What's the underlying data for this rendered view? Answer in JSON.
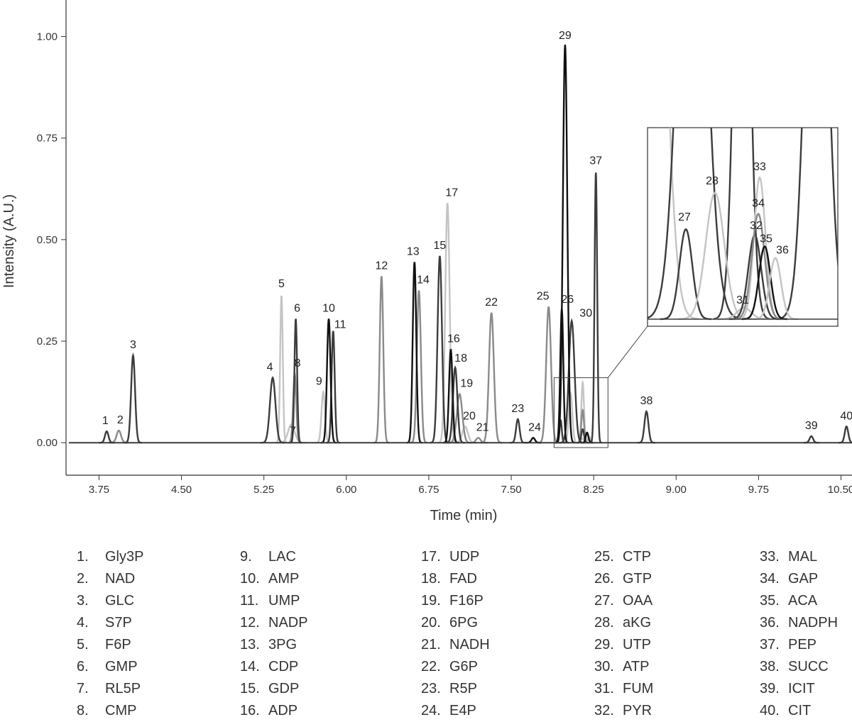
{
  "chart_data": {
    "type": "line",
    "xlabel": "Time (min)",
    "ylabel": "Intensity (A.U.)",
    "xlim": [
      3.45,
      10.6
    ],
    "ylim": [
      -0.08,
      1.09
    ],
    "xticks": [
      3.75,
      4.5,
      5.25,
      6.0,
      6.75,
      7.5,
      8.25,
      9.0,
      9.75,
      10.5
    ],
    "xtick_labels": [
      "3.75",
      "4.50",
      "5.25",
      "6.00",
      "6.75",
      "7.50",
      "8.25",
      "9.00",
      "9.75",
      "10.50"
    ],
    "yticks": [
      0.0,
      0.25,
      0.5,
      0.75,
      1.0
    ],
    "ytick_labels": [
      "0.00",
      "0.25",
      "0.50",
      "0.75",
      "1.00"
    ],
    "grid": false,
    "colors": {
      "dark": "#3c3c3c",
      "black": "#111111",
      "mid": "#8a8a8a",
      "light": "#c4c4c4"
    },
    "peaks": [
      {
        "id": "1",
        "rt": 3.82,
        "height": 0.028,
        "width": 0.016,
        "shade": "dark"
      },
      {
        "id": "2",
        "rt": 3.93,
        "height": 0.03,
        "width": 0.02,
        "shade": "mid"
      },
      {
        "id": "3",
        "rt": 4.06,
        "height": 0.215,
        "width": 0.018,
        "shade": "dark"
      },
      {
        "id": "4",
        "rt": 5.33,
        "height": 0.16,
        "width": 0.025,
        "shade": "dark"
      },
      {
        "id": "5",
        "rt": 5.41,
        "height": 0.362,
        "width": 0.012,
        "shade": "light"
      },
      {
        "id": "6",
        "rt": 5.54,
        "height": 0.305,
        "width": 0.012,
        "shade": "dark"
      },
      {
        "id": "7",
        "rt": 5.5,
        "height": 0.045,
        "width": 0.03,
        "shade": "light"
      },
      {
        "id": "8",
        "rt": 5.53,
        "height": 0.17,
        "width": 0.014,
        "shade": "mid"
      },
      {
        "id": "9",
        "rt": 5.79,
        "height": 0.125,
        "width": 0.016,
        "shade": "light"
      },
      {
        "id": "10",
        "rt": 5.84,
        "height": 0.305,
        "width": 0.016,
        "shade": "black"
      },
      {
        "id": "11",
        "rt": 5.88,
        "height": 0.275,
        "width": 0.014,
        "shade": "dark"
      },
      {
        "id": "12",
        "rt": 6.32,
        "height": 0.41,
        "width": 0.016,
        "shade": "mid"
      },
      {
        "id": "13",
        "rt": 6.62,
        "height": 0.445,
        "width": 0.016,
        "shade": "black"
      },
      {
        "id": "14",
        "rt": 6.66,
        "height": 0.375,
        "width": 0.018,
        "shade": "mid"
      },
      {
        "id": "15",
        "rt": 6.85,
        "height": 0.46,
        "width": 0.02,
        "shade": "dark"
      },
      {
        "id": "16",
        "rt": 6.95,
        "height": 0.23,
        "width": 0.016,
        "shade": "black"
      },
      {
        "id": "17",
        "rt": 6.92,
        "height": 0.59,
        "width": 0.02,
        "shade": "light"
      },
      {
        "id": "18",
        "rt": 6.99,
        "height": 0.185,
        "width": 0.02,
        "shade": "dark"
      },
      {
        "id": "19",
        "rt": 7.03,
        "height": 0.12,
        "width": 0.025,
        "shade": "mid"
      },
      {
        "id": "20",
        "rt": 7.08,
        "height": 0.04,
        "width": 0.025,
        "shade": "light"
      },
      {
        "id": "21",
        "rt": 7.2,
        "height": 0.012,
        "width": 0.02,
        "shade": "mid"
      },
      {
        "id": "22",
        "rt": 7.32,
        "height": 0.32,
        "width": 0.022,
        "shade": "mid"
      },
      {
        "id": "23",
        "rt": 7.56,
        "height": 0.058,
        "width": 0.016,
        "shade": "dark"
      },
      {
        "id": "24",
        "rt": 7.7,
        "height": 0.012,
        "width": 0.016,
        "shade": "black"
      },
      {
        "id": "25",
        "rt": 7.84,
        "height": 0.335,
        "width": 0.022,
        "shade": "mid"
      },
      {
        "id": "26",
        "rt": 7.96,
        "height": 0.33,
        "width": 0.014,
        "shade": "black"
      },
      {
        "id": "27",
        "rt": 7.95,
        "height": 0.055,
        "width": 0.01,
        "shade": "dark"
      },
      {
        "id": "28",
        "rt": 8.04,
        "height": 0.122,
        "width": 0.016,
        "shade": "light"
      },
      {
        "id": "29",
        "rt": 7.99,
        "height": 0.98,
        "width": 0.02,
        "shade": "black"
      },
      {
        "id": "30",
        "rt": 8.05,
        "height": 0.3,
        "width": 0.026,
        "shade": "dark"
      },
      {
        "id": "31",
        "rt": 8.15,
        "height": 0.01,
        "width": 0.015,
        "shade": "light"
      },
      {
        "id": "32",
        "rt": 8.15,
        "height": 0.033,
        "width": 0.012,
        "shade": "dark"
      },
      {
        "id": "33",
        "rt": 8.15,
        "height": 0.148,
        "width": 0.012,
        "shade": "light"
      },
      {
        "id": "34",
        "rt": 8.15,
        "height": 0.08,
        "width": 0.012,
        "shade": "mid"
      },
      {
        "id": "35",
        "rt": 8.19,
        "height": 0.025,
        "width": 0.012,
        "shade": "black"
      },
      {
        "id": "36",
        "rt": 8.21,
        "height": 0.015,
        "width": 0.012,
        "shade": "light"
      },
      {
        "id": "37",
        "rt": 8.27,
        "height": 0.665,
        "width": 0.012,
        "shade": "dark"
      },
      {
        "id": "38",
        "rt": 8.73,
        "height": 0.077,
        "width": 0.018,
        "shade": "dark"
      },
      {
        "id": "39",
        "rt": 10.23,
        "height": 0.016,
        "width": 0.016,
        "shade": "dark"
      },
      {
        "id": "40",
        "rt": 10.55,
        "height": 0.04,
        "width": 0.016,
        "shade": "dark"
      }
    ],
    "inset": {
      "source_box": {
        "x": [
          7.89,
          8.38
        ],
        "y": [
          -0.012,
          0.16
        ]
      },
      "peaks": [
        {
          "id": "27",
          "height": 0.47,
          "shade": "dark"
        },
        {
          "id": "28",
          "height": 0.66,
          "shade": "light"
        },
        {
          "id": "31",
          "height": 0.06,
          "shade": "light"
        },
        {
          "id": "32",
          "height": 0.44,
          "shade": "dark"
        },
        {
          "id": "33",
          "height": 0.74,
          "shade": "light"
        },
        {
          "id": "34",
          "height": 0.55,
          "shade": "mid"
        },
        {
          "id": "35",
          "height": 0.38,
          "shade": "black"
        },
        {
          "id": "36",
          "height": 0.32,
          "shade": "light"
        }
      ]
    }
  },
  "legend": {
    "columns": [
      [
        {
          "num": "1.",
          "name": "Gly3P"
        },
        {
          "num": "2.",
          "name": "NAD"
        },
        {
          "num": "3.",
          "name": "GLC"
        },
        {
          "num": "4.",
          "name": "S7P"
        },
        {
          "num": "5.",
          "name": "F6P"
        },
        {
          "num": "6.",
          "name": "GMP"
        },
        {
          "num": "7.",
          "name": "RL5P"
        },
        {
          "num": "8.",
          "name": "CMP"
        }
      ],
      [
        {
          "num": "9.",
          "name": "LAC"
        },
        {
          "num": "10.",
          "name": "AMP"
        },
        {
          "num": "11.",
          "name": "UMP"
        },
        {
          "num": "12.",
          "name": "NADP"
        },
        {
          "num": "13.",
          "name": "3PG"
        },
        {
          "num": "14.",
          "name": "CDP"
        },
        {
          "num": "15.",
          "name": "GDP"
        },
        {
          "num": "16.",
          "name": "ADP"
        }
      ],
      [
        {
          "num": "17.",
          "name": "UDP"
        },
        {
          "num": "18.",
          "name": "FAD"
        },
        {
          "num": "19.",
          "name": "F16P"
        },
        {
          "num": "20.",
          "name": "6PG"
        },
        {
          "num": "21.",
          "name": "NADH"
        },
        {
          "num": "22.",
          "name": "G6P"
        },
        {
          "num": "23.",
          "name": "R5P"
        },
        {
          "num": "24.",
          "name": "E4P"
        }
      ],
      [
        {
          "num": "25.",
          "name": "CTP"
        },
        {
          "num": "26.",
          "name": "GTP"
        },
        {
          "num": "27.",
          "name": "OAA"
        },
        {
          "num": "28.",
          "name": "aKG"
        },
        {
          "num": "29.",
          "name": "UTP"
        },
        {
          "num": "30.",
          "name": "ATP"
        },
        {
          "num": "31.",
          "name": "FUM"
        },
        {
          "num": "32.",
          "name": "PYR"
        }
      ],
      [
        {
          "num": "33.",
          "name": "MAL"
        },
        {
          "num": "34.",
          "name": "GAP"
        },
        {
          "num": "35.",
          "name": "ACA"
        },
        {
          "num": "36.",
          "name": "NADPH"
        },
        {
          "num": "37.",
          "name": "PEP"
        },
        {
          "num": "38.",
          "name": "SUCC"
        },
        {
          "num": "39.",
          "name": "ICIT"
        },
        {
          "num": "40.",
          "name": "CIT"
        }
      ]
    ]
  }
}
